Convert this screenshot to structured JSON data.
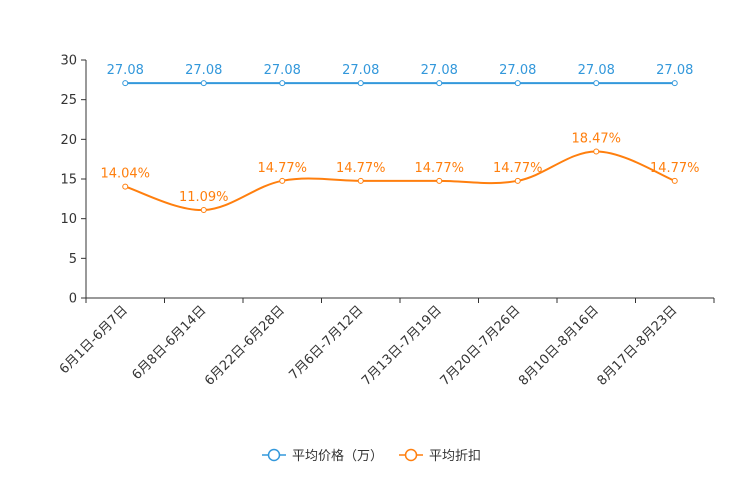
{
  "chart_data": {
    "type": "line",
    "categories": [
      "6月1日-6月7日",
      "6月8日-6月14日",
      "6月22日-6月28日",
      "7月6日-7月12日",
      "7月13日-7月19日",
      "7月20日-7月26日",
      "8月10日-8月16日",
      "8月17日-8月23日"
    ],
    "series": [
      {
        "name": "平均价格（万）",
        "color": "#3398DB",
        "values": [
          27.08,
          27.08,
          27.08,
          27.08,
          27.08,
          27.08,
          27.08,
          27.08
        ],
        "labels": [
          "27.08",
          "27.08",
          "27.08",
          "27.08",
          "27.08",
          "27.08",
          "27.08",
          "27.08"
        ],
        "smooth": false
      },
      {
        "name": "平均折扣",
        "color": "#FF7F0E",
        "values": [
          14.04,
          11.09,
          14.77,
          14.77,
          14.77,
          14.77,
          18.47,
          14.77
        ],
        "labels": [
          "14.04%",
          "11.09%",
          "14.77%",
          "14.77%",
          "14.77%",
          "14.77%",
          "18.47%",
          "14.77%"
        ],
        "smooth": true
      }
    ],
    "ylim": [
      0,
      30
    ],
    "yticks": [
      "0",
      "5",
      "10",
      "15",
      "20",
      "25",
      "30"
    ],
    "title": "",
    "xlabel": "",
    "ylabel": "",
    "legend_position": "bottom-center",
    "grid": false
  }
}
